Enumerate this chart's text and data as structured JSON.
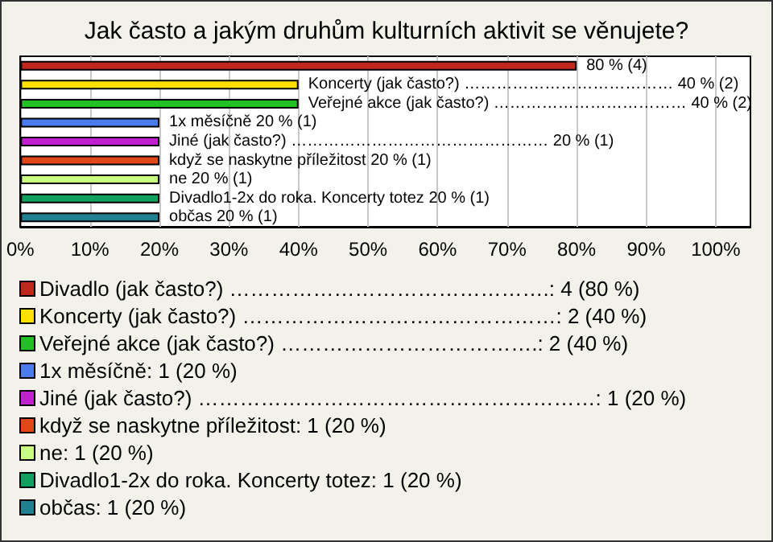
{
  "chart_data": {
    "type": "bar",
    "orientation": "horizontal",
    "stacked": true,
    "title": "Jak často a jakým druhům kulturních aktivit se věnujete?",
    "categories": [
      null,
      null,
      null,
      null,
      null,
      null,
      null,
      null,
      null
    ],
    "series": [
      {
        "name": "Divadlo (jak často?) ……………………………………….: 4 (80 %)",
        "color": "#c0281c",
        "values": [
          80,
          null,
          null,
          null,
          null,
          null,
          null,
          null,
          null
        ],
        "value_labels": [
          "80 % (4)",
          null,
          null,
          null,
          null,
          null,
          null,
          null,
          null
        ]
      },
      {
        "name": "Koncerty (jak často?) ………………………………………: 2 (40 %)",
        "color": "#ffe000",
        "values": [
          null,
          40,
          null,
          null,
          null,
          null,
          null,
          null,
          null
        ],
        "value_labels": [
          null,
          "Koncerty (jak často?) ………………………………… 40 % (2)",
          null,
          null,
          null,
          null,
          null,
          null,
          null
        ]
      },
      {
        "name": "Veřejné akce (jak často?) ……………………………….: 2 (40 %)",
        "color": "#22c022",
        "values": [
          null,
          null,
          40,
          null,
          null,
          null,
          null,
          null,
          null
        ],
        "value_labels": [
          null,
          null,
          "Veřejné akce (jak často?) ……………………………… 40 % (2)",
          null,
          null,
          null,
          null,
          null,
          null
        ]
      },
      {
        "name": "1x měsíčně: 1 (20 %)",
        "color": "#4a7cf0",
        "values": [
          null,
          null,
          null,
          20,
          null,
          null,
          null,
          null,
          null
        ],
        "value_labels": [
          null,
          null,
          null,
          "1x měsíčně 20 % (1)",
          null,
          null,
          null,
          null,
          null
        ]
      },
      {
        "name": "Jiné (jak často?) …………………………………………………: 1 (20 %)",
        "color": "#c020d0",
        "values": [
          null,
          null,
          null,
          null,
          20,
          null,
          null,
          null,
          null
        ],
        "value_labels": [
          null,
          null,
          null,
          null,
          "Jiné (jak často?) ………………………………………… 20 % (1)",
          null,
          null,
          null,
          null
        ]
      },
      {
        "name": "když se naskytne příležitost: 1 (20 %)",
        "color": "#e04818",
        "values": [
          null,
          null,
          null,
          null,
          null,
          20,
          null,
          null,
          null
        ],
        "value_labels": [
          null,
          null,
          null,
          null,
          null,
          "když se naskytne příležitost 20 % (1)",
          null,
          null,
          null
        ]
      },
      {
        "name": "ne: 1 (20 %)",
        "color": "#c8ff80",
        "values": [
          null,
          null,
          null,
          null,
          null,
          null,
          20,
          null,
          null
        ],
        "value_labels": [
          null,
          null,
          null,
          null,
          null,
          null,
          "ne 20 % (1)",
          null,
          null
        ]
      },
      {
        "name": "Divadlo1-2x do roka. Koncerty totez: 1 (20 %)",
        "color": "#10a060",
        "values": [
          null,
          null,
          null,
          null,
          null,
          null,
          null,
          20,
          null
        ],
        "value_labels": [
          null,
          null,
          null,
          null,
          null,
          null,
          null,
          "Divadlo1-2x do roka. Koncerty totez 20 % (1)",
          null
        ]
      },
      {
        "name": "občas: 1 (20 %)",
        "color": "#208090",
        "values": [
          null,
          null,
          null,
          null,
          null,
          null,
          null,
          null,
          20
        ],
        "value_labels": [
          null,
          null,
          null,
          null,
          null,
          null,
          null,
          null,
          "občas 20 % (1)"
        ]
      }
    ],
    "xlim": [
      0,
      105
    ],
    "xticks": [
      {
        "value": 0,
        "label": "0%"
      },
      {
        "value": 10,
        "label": "10%"
      },
      {
        "value": 20,
        "label": "20%"
      },
      {
        "value": 30,
        "label": "30%"
      },
      {
        "value": 40,
        "label": "40%"
      },
      {
        "value": 50,
        "label": "50%"
      },
      {
        "value": 60,
        "label": "60%"
      },
      {
        "value": 70,
        "label": "70%"
      },
      {
        "value": 80,
        "label": "80%"
      },
      {
        "value": 90,
        "label": "90%"
      },
      {
        "value": 100,
        "label": "100%"
      }
    ],
    "grid": "x",
    "legend": "bottom",
    "tick_labels": "x"
  }
}
